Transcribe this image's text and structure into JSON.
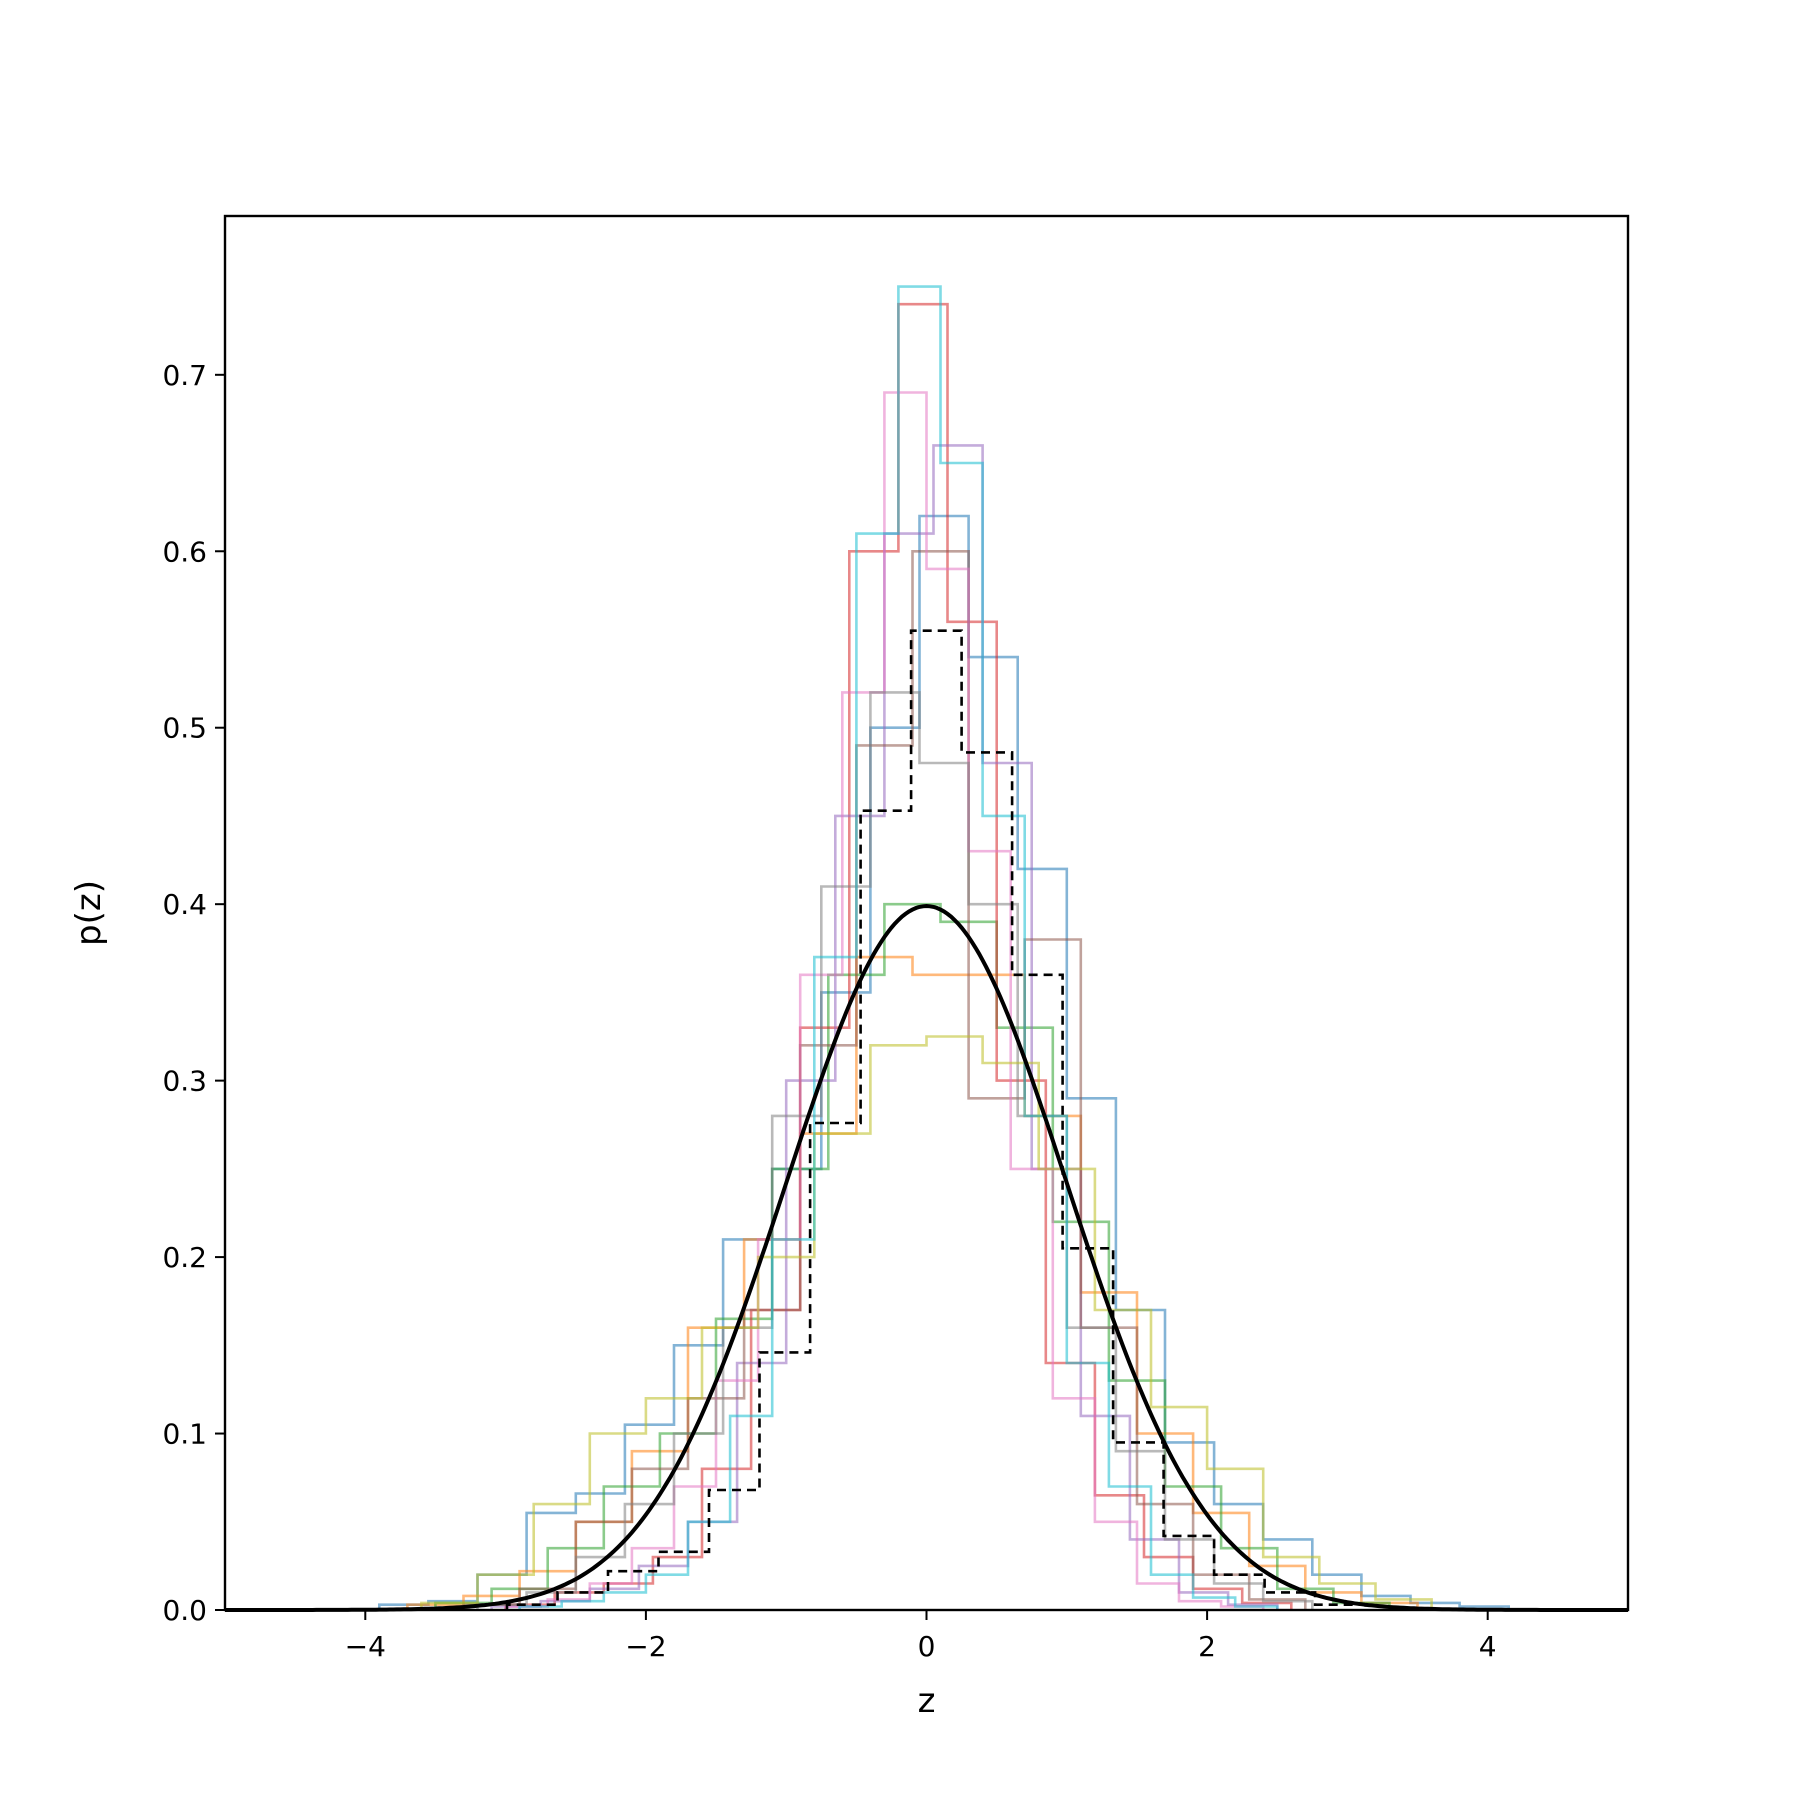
{
  "chart_data": {
    "type": "line",
    "title": "",
    "xlabel": "z",
    "ylabel": "p(z)",
    "xlim": [
      -5,
      5
    ],
    "ylim": [
      0,
      0.79
    ],
    "grid": false,
    "legend": "none",
    "x_ticks": [
      {
        "value": -4,
        "label": "−4"
      },
      {
        "value": -2,
        "label": "−2"
      },
      {
        "value": 0,
        "label": "0"
      },
      {
        "value": 2,
        "label": "2"
      },
      {
        "value": 4,
        "label": "4"
      }
    ],
    "y_ticks": [
      {
        "value": 0.0,
        "label": "0.0"
      },
      {
        "value": 0.1,
        "label": "0.1"
      },
      {
        "value": 0.2,
        "label": "0.2"
      },
      {
        "value": 0.3,
        "label": "0.3"
      },
      {
        "value": 0.4,
        "label": "0.4"
      },
      {
        "value": 0.5,
        "label": "0.5"
      },
      {
        "value": 0.6,
        "label": "0.6"
      },
      {
        "value": 0.7,
        "label": "0.7"
      }
    ],
    "reference_curve": {
      "kind": "standard-normal-pdf",
      "mean": 0,
      "std": 1,
      "color": "#000000",
      "style": "solid"
    },
    "dashed_histogram": {
      "color": "#000000",
      "style": "dashed",
      "edges": [
        -2.99,
        -2.63,
        -2.27,
        -1.91,
        -1.55,
        -1.19,
        -0.83,
        -0.47,
        -0.11,
        0.25,
        0.61,
        0.97,
        1.33,
        1.69,
        2.05,
        2.41,
        2.77,
        3.13
      ],
      "density": [
        0.003,
        0.01,
        0.022,
        0.033,
        0.068,
        0.146,
        0.276,
        0.453,
        0.555,
        0.486,
        0.36,
        0.205,
        0.095,
        0.042,
        0.02,
        0.01,
        0.003
      ]
    },
    "histograms": [
      {
        "color": "#1f77b4",
        "edges": [
          -3.9,
          -3.55,
          -3.2,
          -2.85,
          -2.5,
          -2.15,
          -1.8,
          -1.45,
          -1.1,
          -0.75,
          -0.4,
          -0.05,
          0.3,
          0.65,
          1.0,
          1.35,
          1.7,
          2.05,
          2.4,
          2.75,
          3.1,
          3.45,
          3.8,
          4.15
        ],
        "density": [
          0.003,
          0.005,
          0.02,
          0.055,
          0.066,
          0.105,
          0.15,
          0.21,
          0.25,
          0.35,
          0.5,
          0.62,
          0.54,
          0.42,
          0.29,
          0.17,
          0.095,
          0.06,
          0.04,
          0.02,
          0.008,
          0.004,
          0.002
        ]
      },
      {
        "color": "#ff7f0e",
        "edges": [
          -3.7,
          -3.3,
          -2.9,
          -2.5,
          -2.1,
          -1.7,
          -1.3,
          -0.9,
          -0.5,
          -0.1,
          0.3,
          0.7,
          1.1,
          1.5,
          1.9,
          2.3,
          2.7,
          3.1,
          3.5
        ],
        "density": [
          0.003,
          0.008,
          0.022,
          0.05,
          0.09,
          0.16,
          0.21,
          0.27,
          0.37,
          0.36,
          0.36,
          0.28,
          0.18,
          0.1,
          0.055,
          0.025,
          0.01,
          0.004
        ]
      },
      {
        "color": "#2ca02c",
        "edges": [
          -3.5,
          -3.1,
          -2.7,
          -2.3,
          -1.9,
          -1.5,
          -1.1,
          -0.7,
          -0.3,
          0.1,
          0.5,
          0.9,
          1.3,
          1.7,
          2.1,
          2.5,
          2.9,
          3.3
        ],
        "density": [
          0.004,
          0.012,
          0.035,
          0.07,
          0.1,
          0.165,
          0.25,
          0.36,
          0.4,
          0.39,
          0.33,
          0.22,
          0.13,
          0.07,
          0.035,
          0.012,
          0.004
        ]
      },
      {
        "color": "#d62728",
        "edges": [
          -3.0,
          -2.65,
          -2.3,
          -1.95,
          -1.6,
          -1.25,
          -0.9,
          -0.55,
          -0.2,
          0.15,
          0.5,
          0.85,
          1.2,
          1.55,
          1.9,
          2.25,
          2.6
        ],
        "density": [
          0.003,
          0.01,
          0.015,
          0.03,
          0.08,
          0.17,
          0.33,
          0.6,
          0.74,
          0.56,
          0.3,
          0.14,
          0.065,
          0.03,
          0.012,
          0.004
        ]
      },
      {
        "color": "#9467bd",
        "edges": [
          -3.1,
          -2.75,
          -2.4,
          -2.05,
          -1.7,
          -1.35,
          -1.0,
          -0.65,
          -0.3,
          0.05,
          0.4,
          0.75,
          1.1,
          1.45,
          1.8,
          2.15,
          2.5
        ],
        "density": [
          0.002,
          0.005,
          0.012,
          0.025,
          0.05,
          0.14,
          0.3,
          0.45,
          0.61,
          0.66,
          0.48,
          0.25,
          0.11,
          0.04,
          0.01,
          0.003
        ]
      },
      {
        "color": "#8c564b",
        "edges": [
          -3.3,
          -2.9,
          -2.5,
          -2.1,
          -1.7,
          -1.3,
          -0.9,
          -0.5,
          -0.1,
          0.3,
          0.7,
          1.1,
          1.5,
          1.9,
          2.3,
          2.7
        ],
        "density": [
          0.003,
          0.012,
          0.05,
          0.08,
          0.12,
          0.17,
          0.32,
          0.49,
          0.6,
          0.29,
          0.38,
          0.16,
          0.06,
          0.02,
          0.006
        ]
      },
      {
        "color": "#e377c2",
        "edges": [
          -3.0,
          -2.7,
          -2.4,
          -2.1,
          -1.8,
          -1.5,
          -1.2,
          -0.9,
          -0.6,
          -0.3,
          0.0,
          0.3,
          0.6,
          0.9,
          1.2,
          1.5,
          1.8,
          2.1,
          2.4
        ],
        "density": [
          0.002,
          0.006,
          0.015,
          0.035,
          0.07,
          0.13,
          0.21,
          0.36,
          0.52,
          0.69,
          0.59,
          0.43,
          0.25,
          0.12,
          0.05,
          0.015,
          0.005,
          0.002
        ]
      },
      {
        "color": "#7f7f7f",
        "edges": [
          -3.2,
          -2.85,
          -2.5,
          -2.15,
          -1.8,
          -1.45,
          -1.1,
          -0.75,
          -0.4,
          -0.05,
          0.3,
          0.65,
          1.0,
          1.35,
          1.7,
          2.05,
          2.4,
          2.75
        ],
        "density": [
          0.003,
          0.01,
          0.03,
          0.06,
          0.1,
          0.16,
          0.28,
          0.41,
          0.52,
          0.48,
          0.4,
          0.28,
          0.16,
          0.09,
          0.04,
          0.015,
          0.005
        ]
      },
      {
        "color": "#bcbd22",
        "edges": [
          -3.6,
          -3.2,
          -2.8,
          -2.4,
          -2.0,
          -1.6,
          -1.2,
          -0.8,
          -0.4,
          0.0,
          0.4,
          0.8,
          1.2,
          1.6,
          2.0,
          2.4,
          2.8,
          3.2,
          3.6
        ],
        "density": [
          0.004,
          0.02,
          0.06,
          0.1,
          0.12,
          0.16,
          0.2,
          0.27,
          0.32,
          0.325,
          0.31,
          0.25,
          0.17,
          0.115,
          0.08,
          0.03,
          0.015,
          0.006
        ]
      },
      {
        "color": "#17becf",
        "edges": [
          -2.9,
          -2.6,
          -2.3,
          -2.0,
          -1.7,
          -1.4,
          -1.1,
          -0.8,
          -0.5,
          -0.2,
          0.1,
          0.4,
          0.7,
          1.0,
          1.3,
          1.6,
          1.9,
          2.2,
          2.5
        ],
        "density": [
          0.002,
          0.005,
          0.01,
          0.02,
          0.05,
          0.11,
          0.21,
          0.37,
          0.61,
          0.75,
          0.65,
          0.45,
          0.28,
          0.14,
          0.07,
          0.02,
          0.007,
          0.002
        ]
      }
    ]
  }
}
